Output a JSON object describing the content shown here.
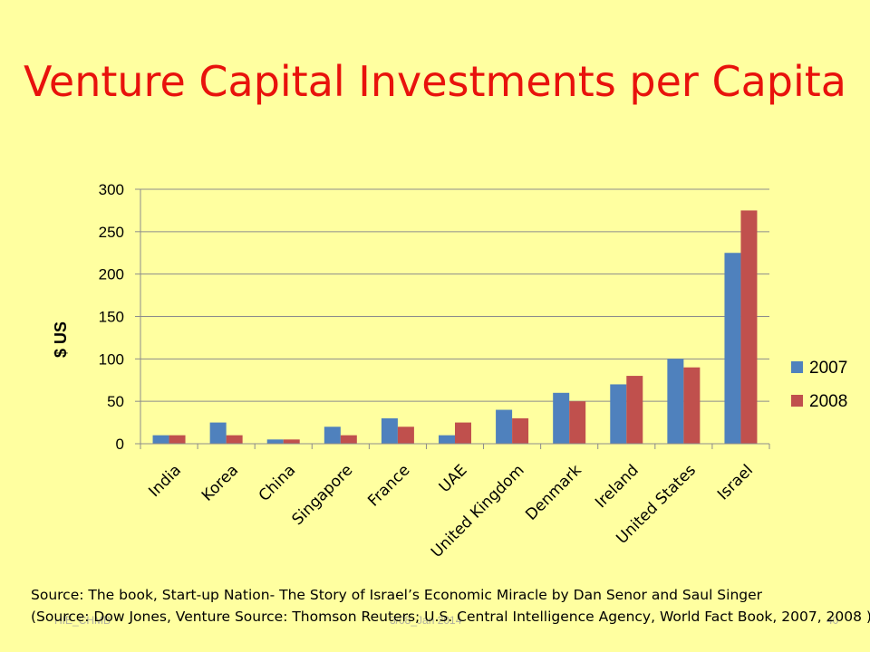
{
  "slide": {
    "title": "Venture Capital Investments per Capita",
    "source_line": "Source: The book, Start-up Nation- The Story of Israel’s Economic Miracle by Dan Senor and Saul Singer",
    "source_detail": "(Source: Dow Jones, Venture Source: Thomson Reuters; U.S. Central Intelligence Agency, World Fact Book, 2007, 2008 )",
    "footer_left": "HIE_CHMB",
    "footer_center": "3/08_Jan 2014",
    "footer_right": "40"
  },
  "colors": {
    "background": "#FFFFA0",
    "title": "#E8120C",
    "series_2007": "#4F81BD",
    "series_2008": "#C0504D",
    "gridline": "#8C8C8C"
  },
  "chart_data": {
    "type": "bar",
    "title": "",
    "xlabel": "",
    "ylabel": "$ US",
    "ylim": [
      0,
      300
    ],
    "yticks": [
      0,
      50,
      100,
      150,
      200,
      250,
      300
    ],
    "grid": true,
    "legend_position": "right",
    "categories": [
      "India",
      "Korea",
      "China",
      "Singapore",
      "France",
      "UAE",
      "United Kingdom",
      "Denmark",
      "Ireland",
      "United States",
      "Israel"
    ],
    "series": [
      {
        "name": "2007",
        "values": [
          10,
          25,
          5,
          20,
          30,
          10,
          40,
          60,
          70,
          100,
          225
        ]
      },
      {
        "name": "2008",
        "values": [
          10,
          10,
          5,
          10,
          20,
          25,
          30,
          50,
          80,
          90,
          275
        ]
      }
    ]
  }
}
